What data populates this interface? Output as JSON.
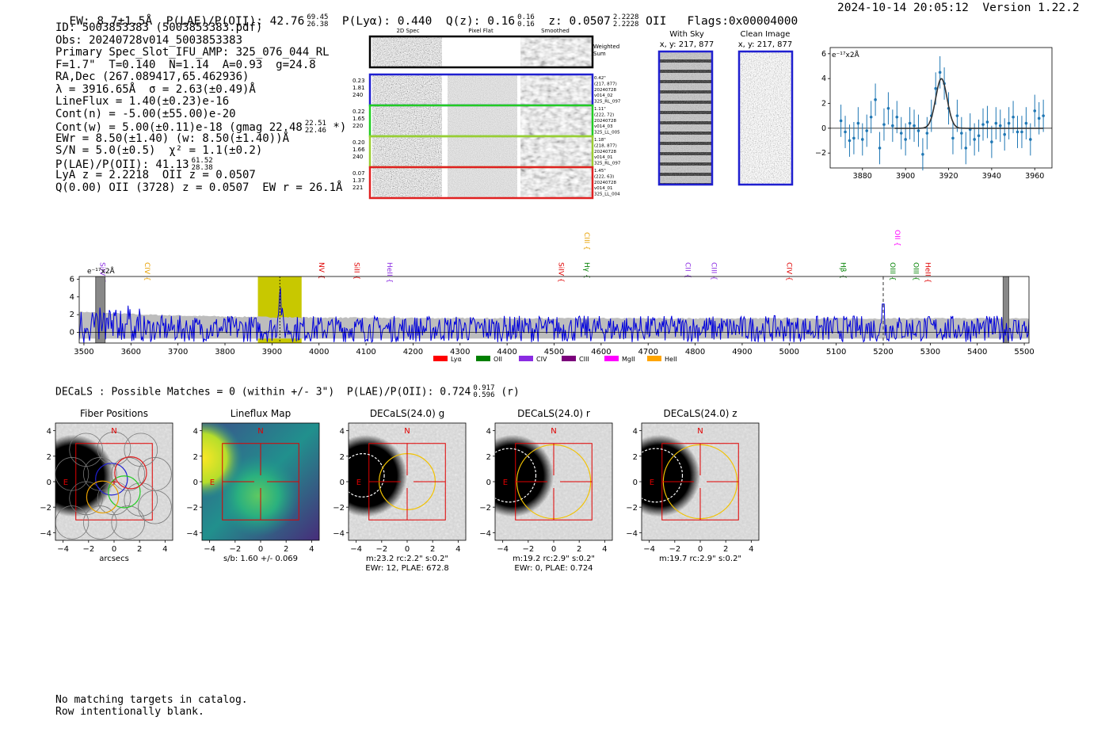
{
  "header": {
    "ew": "EW: 8.7±1.5Å",
    "plae_label": "P(LAE)/P(OII): 42.76",
    "plae_hi": "69.45",
    "plae_lo": "26.38",
    "plya": "P(Lyα): 0.440",
    "qz_label": "Q(z): 0.16",
    "qz_hi": "0.16",
    "qz_lo": "0.16",
    "z_label": "z: 0.0507",
    "z_hi": "2.2228",
    "z_lo": "2.2228",
    "z_line": "OII",
    "flags": "Flags:0x00004000",
    "timestamp": "2024-10-14 20:05:12",
    "version": "Version 1.22.2"
  },
  "info": {
    "id": "ID: 5003853383 (5003853383.pdf)",
    "obs": "Obs: 20240728v014_5003853383",
    "primary": "Primary Spec_Slot_IFU_AMP: 325_076_044_RL",
    "fwhm": "F=1.7\"  T=0.140  N=1.14  A=0.93  g=24.8",
    "radec": "RA,Dec (267.089417,65.462936)",
    "lambda": "λ = 3916.65Å  σ = 2.63(±0.49)Å",
    "lineflux": "LineFlux = 1.40(±0.23)e-16",
    "contn": "Cont(n) = -5.00(±55.00)e-20",
    "contw": "Cont(w) = 5.00(±0.11)e-18 (gmag 22.48",
    "contw_hi": "22.51",
    "contw_lo": "22.46",
    "contw_tail": "*)",
    "ewr": "EWr = 8.50(±1.40) (w: 8.50(±1.40))Å",
    "sn": "S/N = 5.0(±0.5)  χ² = 1.1(±0.2)",
    "plae": "P(LAE)/P(OII): 41.13",
    "plae_hi": "61.52",
    "plae_lo": "28.38",
    "lya": "LyA z = 2.2218  OII z = 0.0507",
    "q": "Q(0.00) OII (3728) z = 0.0507  EW r = 26.1Å"
  },
  "cutouts": {
    "col_2d": "2D Spec",
    "col_flat": "Pixel Flat",
    "col_smooth": "Smoothed",
    "weighted": "Weighted",
    "sum": "Sum",
    "rows": [
      {
        "color": "#1f1fd0",
        "left": [
          "0.23",
          "1.81",
          "240"
        ],
        "right": [
          "0.42\"",
          "(217, 877)",
          "20240728",
          "v014_02",
          "325_RL_097"
        ]
      },
      {
        "color": "#22cc22",
        "left": [
          "0.22",
          "1.65",
          "220"
        ],
        "right": [
          "1.11\"",
          "(222, 72)",
          "20240728",
          "v014_03",
          "325_LL_005"
        ]
      },
      {
        "color": "#9acd32",
        "left": [
          "0.20",
          "1.66",
          "240"
        ],
        "right": [
          "1.18\"",
          "(218, 877)",
          "20240728",
          "v014_01",
          "325_RL_097"
        ]
      },
      {
        "color": "#e02020",
        "left": [
          "0.07",
          "1.37",
          "221"
        ],
        "right": [
          "1.45\"",
          "(222, 63)",
          "20240728",
          "v014_01",
          "325_LL_004"
        ]
      }
    ]
  },
  "sky": {
    "with_sky": "With Sky",
    "with_sky_xy": "x, y: 217, 877",
    "clean": "Clean Image",
    "clean_xy": "x, y: 217, 877"
  },
  "zoom_plot": {
    "unit": "e⁻¹⁷x2Å",
    "xticks": [
      "3880",
      "3900",
      "3920",
      "3940",
      "3960"
    ],
    "yticks": [
      "6",
      "4",
      "2",
      "0",
      "−2"
    ]
  },
  "spectrum": {
    "unit": "e⁻¹⁷x2Å",
    "xticks": [
      "3500",
      "3600",
      "3700",
      "3800",
      "3900",
      "4000",
      "4100",
      "4200",
      "4300",
      "4400",
      "4500",
      "4600",
      "4700",
      "4800",
      "4900",
      "5000",
      "5100",
      "5200",
      "5300",
      "5400",
      "5500"
    ],
    "yticks": [
      "6",
      "4",
      "2",
      "0"
    ],
    "lines": [
      {
        "label": "SiIV",
        "color": "#8a2be2",
        "x": 3530
      },
      {
        "label": "CIV",
        "color": "#e8a000",
        "x": 3625
      },
      {
        "label": "NV",
        "color": "#e00000",
        "x": 3995
      },
      {
        "label": "SiII",
        "color": "#e00000",
        "x": 4070
      },
      {
        "label": "HeII",
        "color": "#8a2be2",
        "x": 4140
      },
      {
        "label": "SiIV",
        "color": "#e00000",
        "x": 4505
      },
      {
        "label": "Hγ",
        "color": "#008000",
        "x": 4560
      },
      {
        "label": "CIII",
        "color": "#e8a000",
        "x": 4560
      },
      {
        "label": "CII",
        "color": "#8a2be2",
        "x": 4775
      },
      {
        "label": "CIII",
        "color": "#8a2be2",
        "x": 4830
      },
      {
        "label": "CIV",
        "color": "#e00000",
        "x": 4990
      },
      {
        "label": "Hβ",
        "color": "#008000",
        "x": 5105
      },
      {
        "label": "OIII",
        "color": "#008000",
        "x": 5210
      },
      {
        "label": "OII",
        "color": "#ff00ff",
        "x": 5220
      },
      {
        "label": "OIII",
        "color": "#008000",
        "x": 5260
      },
      {
        "label": "HeII",
        "color": "#e00000",
        "x": 5285
      }
    ],
    "legend": [
      {
        "label": "Lyα",
        "color": "#ff0000"
      },
      {
        "label": "OII",
        "color": "#008000"
      },
      {
        "label": "CIV",
        "color": "#8a2be2"
      },
      {
        "label": "CIII",
        "color": "#7b007b"
      },
      {
        "label": "MgII",
        "color": "#ff00ff"
      },
      {
        "label": "HeII",
        "color": "#ffa500"
      }
    ]
  },
  "decals": {
    "header": "DECaLS : Possible Matches = 0 (within +/- 3\")  P(LAE)/P(OII): 0.724",
    "hi": "0.917",
    "lo": "0.596",
    "tail": "(r)",
    "panels": [
      {
        "title": "Fiber Positions",
        "cap1": "arcsecs",
        "cap2": ""
      },
      {
        "title": "Lineflux Map",
        "cap1": "s/b: 1.60 +/- 0.069",
        "cap2": ""
      },
      {
        "title": "DECaLS(24.0) g",
        "cap1": "m:23.2 rc:2.2\"  s:0.2\"",
        "cap2": "EWr: 12, PLAE: 672.8"
      },
      {
        "title": "DECaLS(24.0) r",
        "cap1": "m:19.2 rc:2.9\"  s:0.2\"",
        "cap2": "EWr: 0, PLAE: 0.724"
      },
      {
        "title": "DECaLS(24.0) z",
        "cap1": "m:19.7 rc:2.9\"  s:0.2\"",
        "cap2": ""
      }
    ],
    "ticks": [
      "4",
      "2",
      "0",
      "−2",
      "−4"
    ],
    "xticks": [
      "−4",
      "−2",
      "0",
      "2",
      "4"
    ],
    "north": "N",
    "east": "E"
  },
  "footer": {
    "line1": "No matching targets in catalog.",
    "line2": "Row intentionally blank."
  },
  "chart_data": [
    {
      "type": "scatter",
      "title": "",
      "xlabel": "",
      "ylabel": "e-17x2Å",
      "xlim": [
        3865,
        3968
      ],
      "ylim": [
        -3.2,
        6.5
      ],
      "x": [
        3870,
        3872,
        3874,
        3876,
        3878,
        3880,
        3882,
        3884,
        3886,
        3888,
        3890,
        3892,
        3894,
        3896,
        3898,
        3900,
        3902,
        3904,
        3906,
        3908,
        3910,
        3912,
        3914,
        3916,
        3918,
        3920,
        3922,
        3924,
        3926,
        3928,
        3930,
        3932,
        3934,
        3936,
        3938,
        3940,
        3942,
        3944,
        3946,
        3948,
        3950,
        3952,
        3954,
        3956,
        3958,
        3960,
        3962,
        3964
      ],
      "y": [
        0.6,
        -0.3,
        -1.0,
        -0.8,
        0.4,
        -0.9,
        -0.2,
        0.9,
        2.3,
        -1.6,
        0.3,
        1.6,
        0.2,
        0.9,
        -0.4,
        -0.9,
        0.4,
        0.2,
        -0.2,
        -2.1,
        -0.4,
        1.0,
        3.2,
        4.5,
        3.6,
        1.6,
        -0.8,
        1.0,
        -0.4,
        -1.6,
        -0.1,
        -0.9,
        -0.6,
        0.3,
        0.5,
        -1.1,
        0.4,
        0.2,
        -0.5,
        0.4,
        0.9,
        -0.3,
        -0.3,
        0.4,
        -0.9,
        1.4,
        0.8,
        1.0
      ],
      "err": [
        1.3,
        1.3,
        1.3,
        1.3,
        1.3,
        1.3,
        1.3,
        1.3,
        1.3,
        1.3,
        1.3,
        1.3,
        1.3,
        1.3,
        1.3,
        1.3,
        1.3,
        1.3,
        1.3,
        1.3,
        1.3,
        1.3,
        1.3,
        1.3,
        1.3,
        1.3,
        1.3,
        1.3,
        1.3,
        1.3,
        1.3,
        1.3,
        1.3,
        1.3,
        1.3,
        1.3,
        1.3,
        1.3,
        1.3,
        1.3,
        1.3,
        1.3,
        1.3,
        1.3,
        1.3,
        1.3,
        1.3,
        1.3
      ],
      "fit": {
        "type": "gaussian",
        "center": 3916.65,
        "sigma": 2.63,
        "amp": 4.0
      }
    },
    {
      "type": "line",
      "title": "",
      "xlabel": "",
      "ylabel": "e-17x2Å",
      "xlim": [
        3490,
        5510
      ],
      "ylim": [
        -1.2,
        6.3
      ],
      "seed": 7,
      "emission_line": {
        "center": 3916.65,
        "amp": 4.6,
        "sigma": 3
      },
      "oii_line": {
        "center": 5200,
        "amp": 3.2
      },
      "highlight_range": [
        3870,
        3963
      ],
      "masked_ranges": [
        [
          3525,
          3545
        ],
        [
          5455,
          5467
        ]
      ]
    }
  ]
}
